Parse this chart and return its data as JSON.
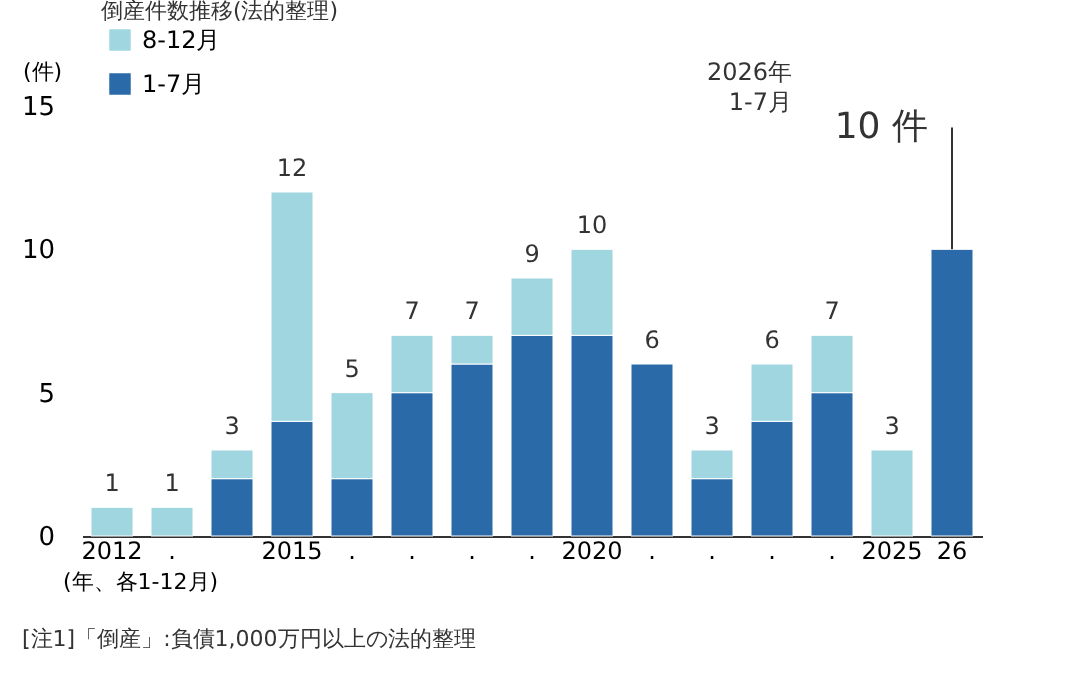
{
  "chart_data": {
    "type": "bar",
    "title": "倒産件数推移(法的整理)",
    "ylabel": "(件)",
    "xlabel": "(年、各1-12月)",
    "categories": [
      "2012",
      ".",
      null,
      "2015",
      ".",
      ".",
      ".",
      ".",
      "2020",
      ".",
      ".",
      ".",
      ".",
      "2025",
      "26"
    ],
    "stacked": true,
    "series": [
      {
        "name": "1-7月",
        "color": "#2a6aa8",
        "values": [
          null,
          null,
          2,
          4,
          2,
          5,
          6,
          7,
          7,
          6,
          2,
          4,
          5,
          null,
          10
        ]
      },
      {
        "name": "8-12月",
        "color": "#9fd6e0",
        "values": [
          1,
          1,
          1,
          8,
          3,
          2,
          1,
          2,
          3,
          null,
          1,
          2,
          2,
          3,
          null
        ]
      }
    ],
    "totals": [
      "1",
      "1",
      "3",
      "12",
      "5",
      "7",
      "7",
      "9",
      "10",
      "6",
      "3",
      "6",
      "7",
      "3",
      null
    ],
    "ylim": [
      0,
      15
    ],
    "yticks": [
      0,
      5,
      10,
      15
    ],
    "grid": false,
    "legend": "top left",
    "annotations": [
      "2026年\n1-7月",
      {
        "text": "10 件",
        "x": "26",
        "y": 10
      },
      "[注1]「倒産」:負債1,000万円以上の法的整理"
    ]
  }
}
